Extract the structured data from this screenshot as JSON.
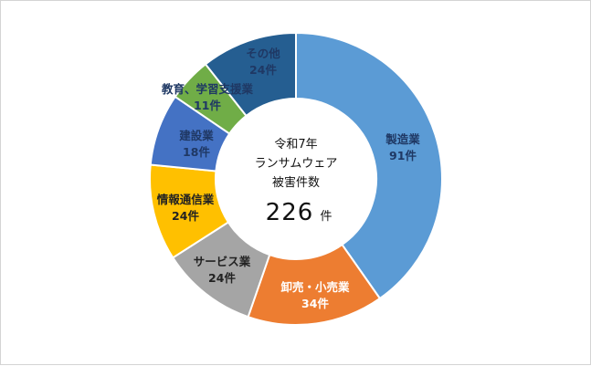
{
  "chart_data": {
    "type": "pie",
    "variant": "donut",
    "center": {
      "line1": "令和7年",
      "line2": "ランサムウェア",
      "line3": "被害件数",
      "total": "226",
      "unit": "件"
    },
    "slices": [
      {
        "label": "製造業",
        "value": 91,
        "value_text": "91件",
        "color": "#5b9bd5",
        "text_color": "#1f3864"
      },
      {
        "label": "卸売・小売業",
        "value": 34,
        "value_text": "34件",
        "color": "#ed7d31",
        "text_color": "#ffffff"
      },
      {
        "label": "サービス業",
        "value": 24,
        "value_text": "24件",
        "color": "#a5a5a5",
        "text_color": "#222222"
      },
      {
        "label": "情報通信業",
        "value": 24,
        "value_text": "24件",
        "color": "#ffc000",
        "text_color": "#222222"
      },
      {
        "label": "建設業",
        "value": 18,
        "value_text": "18件",
        "color": "#4472c4",
        "text_color": "#1f3864"
      },
      {
        "label": "教育、学習支援業",
        "value": 11,
        "value_text": "11件",
        "color": "#70ad47",
        "text_color": "#1f3864"
      },
      {
        "label": "その他",
        "value": 24,
        "value_text": "24件",
        "color": "#255e91",
        "text_color": "#1f3864"
      }
    ]
  }
}
